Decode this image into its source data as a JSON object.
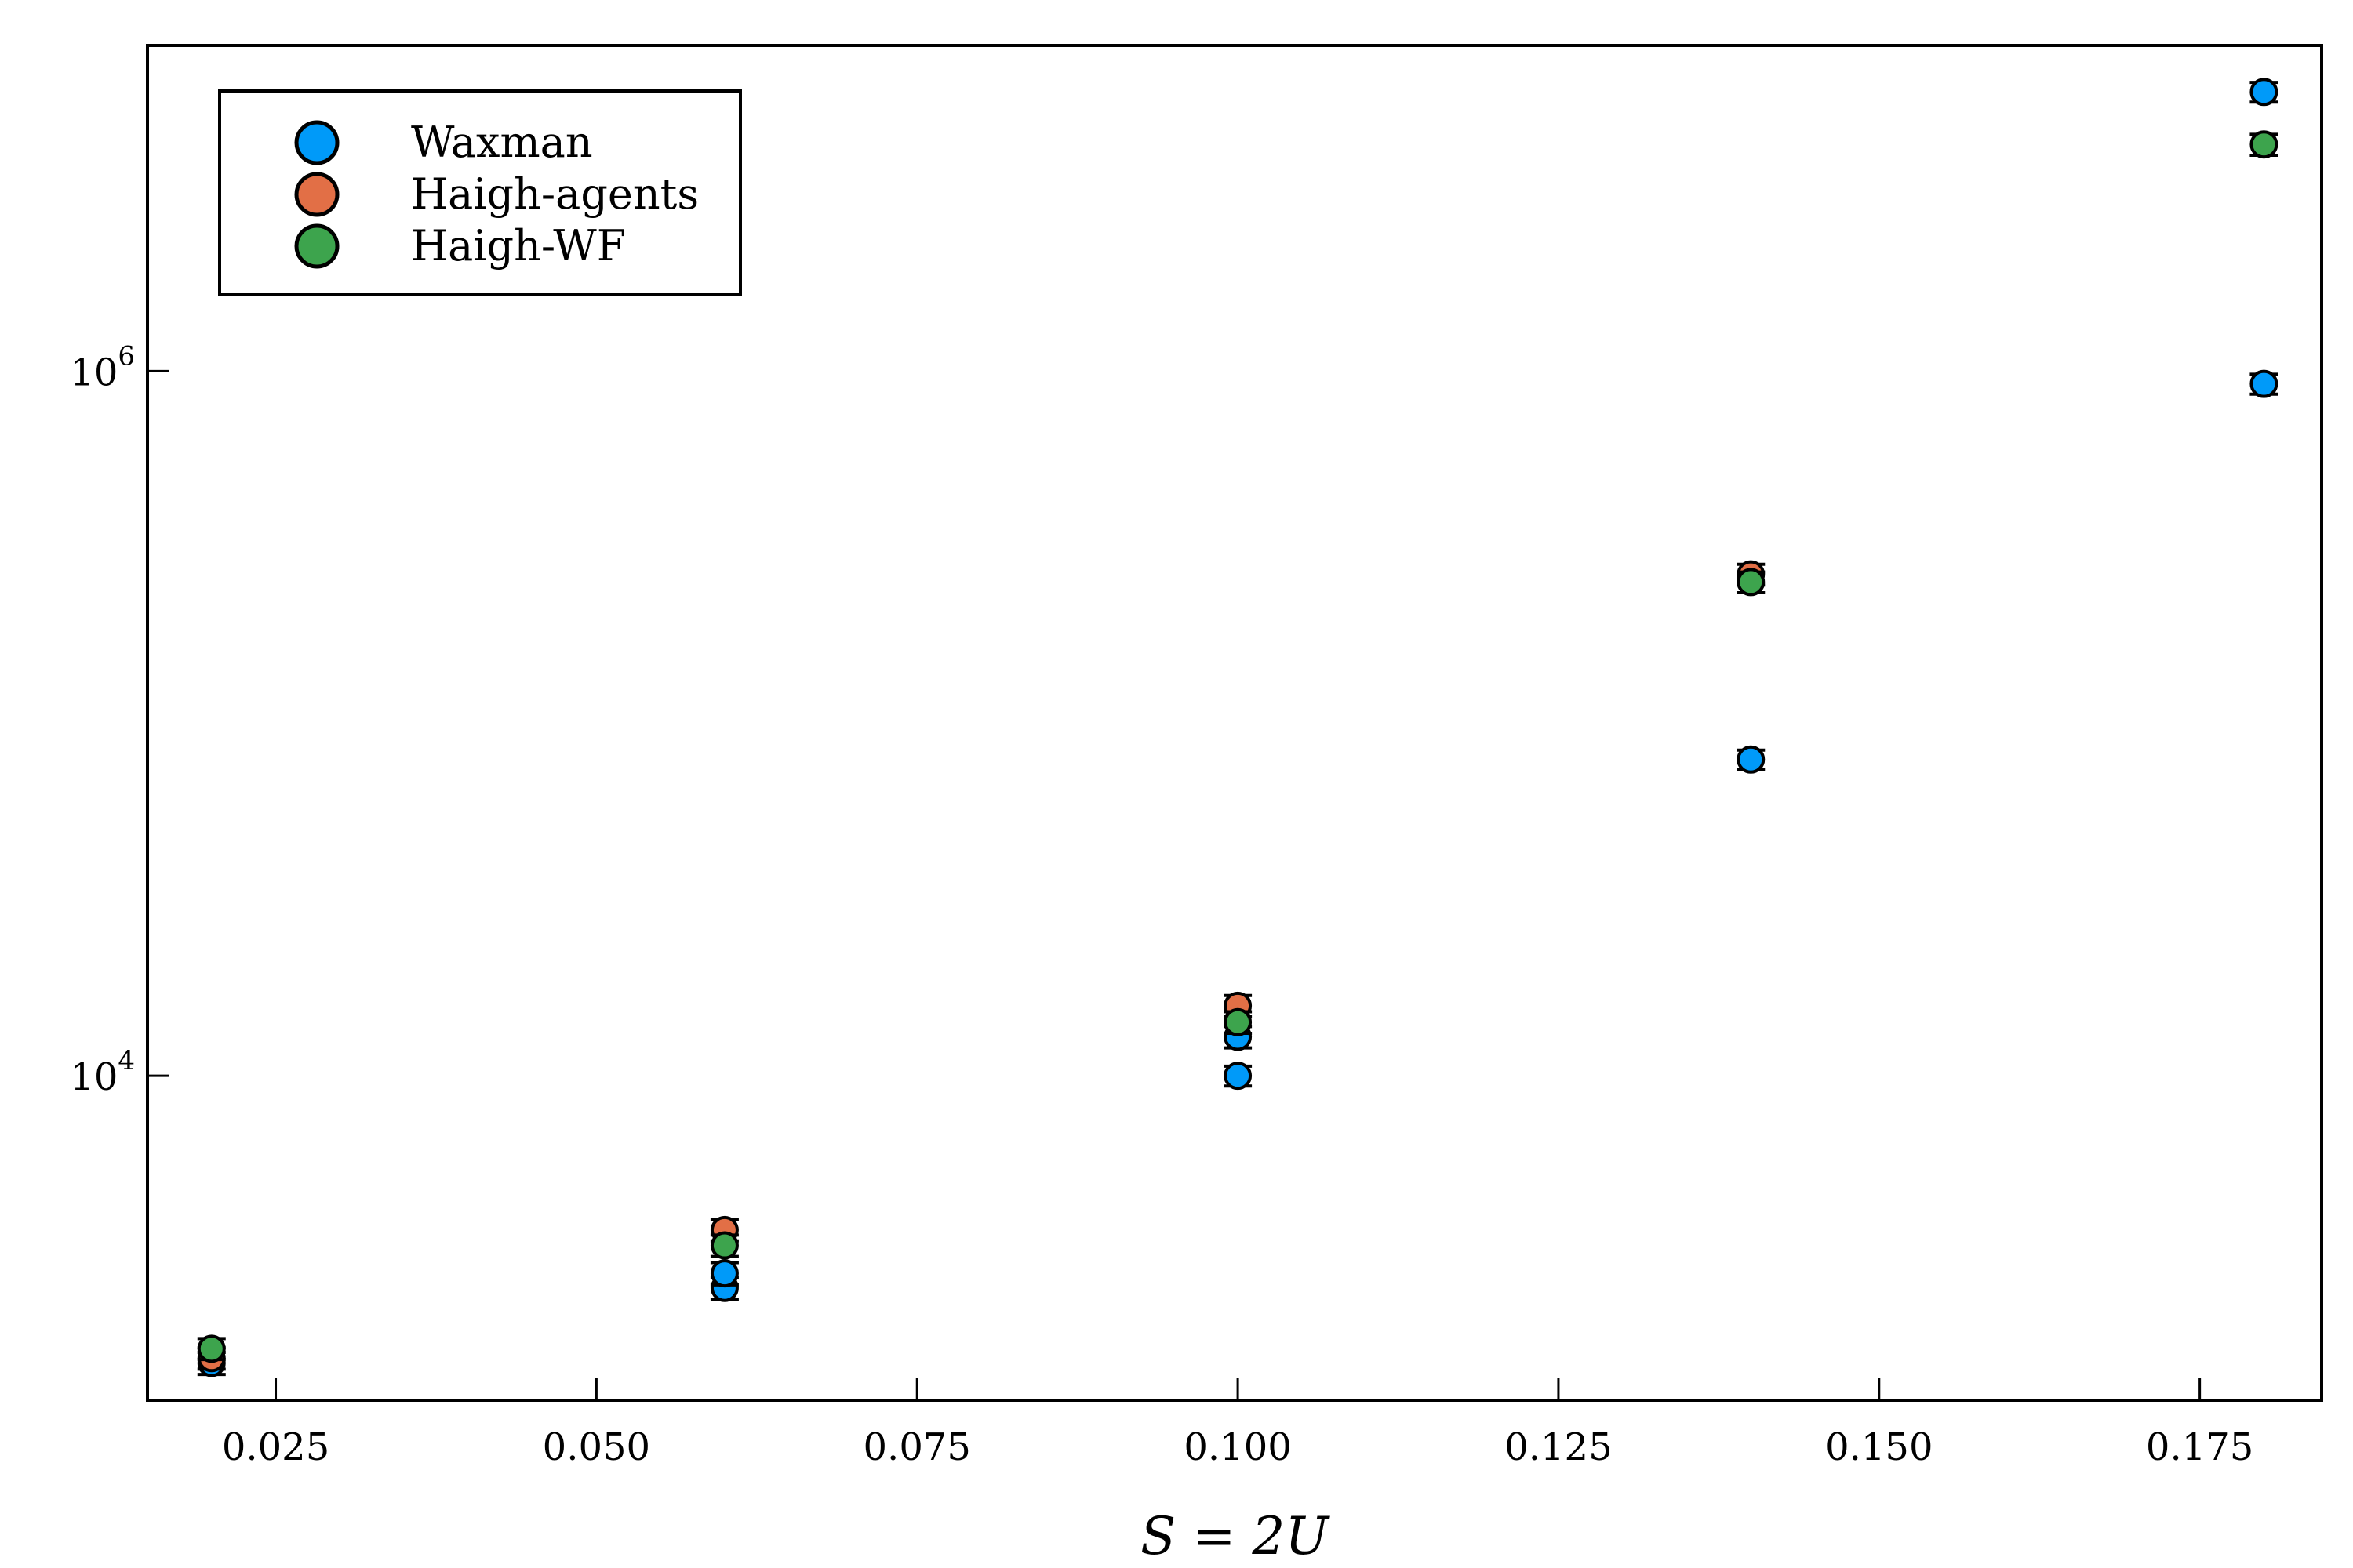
{
  "chart_data": {
    "type": "scatter",
    "title": "",
    "xlabel": "S = 2U",
    "ylabel": "",
    "yscale": "log",
    "xlim": [
      0.015,
      0.1845
    ],
    "ylim": [
      1200,
      8400000
    ],
    "x_ticks": [
      {
        "value": 0.025,
        "label": "0.025"
      },
      {
        "value": 0.05,
        "label": "0.050"
      },
      {
        "value": 0.075,
        "label": "0.075"
      },
      {
        "value": 0.1,
        "label": "0.100"
      },
      {
        "value": 0.125,
        "label": "0.125"
      },
      {
        "value": 0.15,
        "label": "0.150"
      },
      {
        "value": 0.175,
        "label": "0.175"
      }
    ],
    "y_ticks": [
      {
        "value": 10000,
        "base": "10",
        "exp": "4"
      },
      {
        "value": 1000000,
        "base": "10",
        "exp": "6"
      }
    ],
    "legend_position": "top-left",
    "grid": false,
    "series": [
      {
        "name": "Waxman",
        "color": "#009af9",
        "points": [
          {
            "x": 0.02,
            "y": 1530,
            "err": 110
          },
          {
            "x": 0.06,
            "y": 2500,
            "err": 180
          },
          {
            "x": 0.06,
            "y": 2750,
            "err": 200
          },
          {
            "x": 0.1,
            "y": 10000,
            "err": 650
          },
          {
            "x": 0.1,
            "y": 12900,
            "err": 900
          },
          {
            "x": 0.14,
            "y": 79000,
            "err": 5000
          },
          {
            "x": 0.18,
            "y": 920000,
            "err": 60000
          },
          {
            "x": 0.18,
            "y": 6200000,
            "err": 400000
          }
        ]
      },
      {
        "name": "Haigh-agents",
        "color": "#e26f46",
        "points": [
          {
            "x": 0.02,
            "y": 1580,
            "err": 110
          },
          {
            "x": 0.06,
            "y": 3650,
            "err": 250
          },
          {
            "x": 0.1,
            "y": 15800,
            "err": 1100
          },
          {
            "x": 0.14,
            "y": 265000,
            "err": 18000
          }
        ]
      },
      {
        "name": "Haigh-WF",
        "color": "#3da44d",
        "points": [
          {
            "x": 0.02,
            "y": 1680,
            "err": 115
          },
          {
            "x": 0.06,
            "y": 3300,
            "err": 230
          },
          {
            "x": 0.1,
            "y": 14200,
            "err": 1000
          },
          {
            "x": 0.14,
            "y": 252000,
            "err": 17000
          },
          {
            "x": 0.18,
            "y": 4400000,
            "err": 300000
          }
        ]
      }
    ]
  }
}
